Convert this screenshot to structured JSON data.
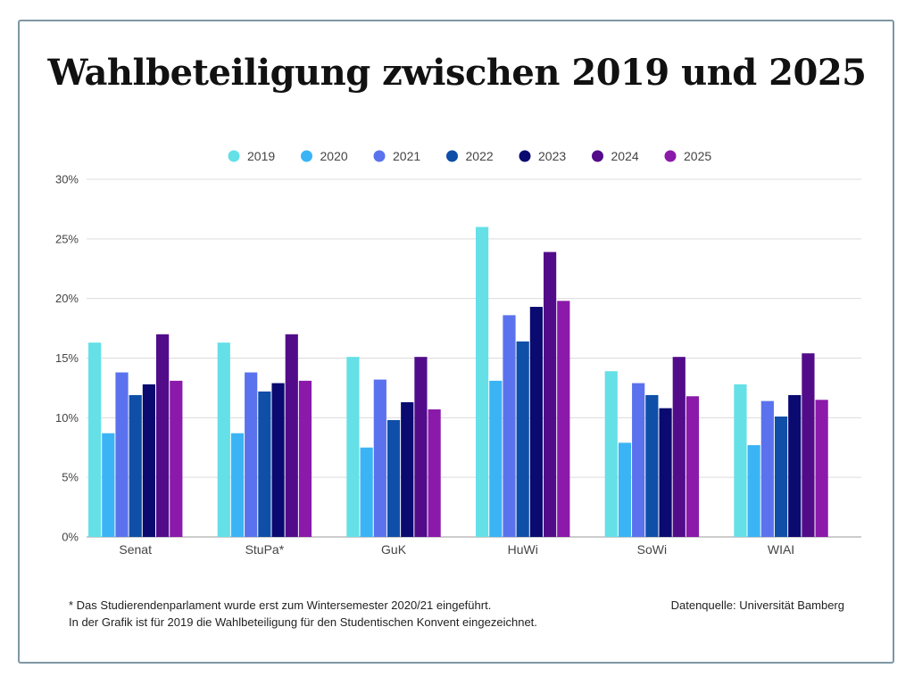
{
  "title": "Wahlbeteiligung zwischen 2019 und 2025",
  "footnote_lines": [
    "* Das Studierendenparlament wurde erst zum Wintersemester 2020/21 eingeführt.",
    "In der Grafik ist für 2019 die Wahlbeteiligung für den Studentischen Konvent eingezeichnet."
  ],
  "source": "Datenquelle: Universität Bamberg",
  "chart_data": {
    "type": "bar",
    "categories": [
      "Senat",
      "StuPa*",
      "GuK",
      "HuWi",
      "SoWi",
      "WIAI"
    ],
    "series": [
      {
        "name": "2019",
        "color": "#64e0e6",
        "values": [
          16.3,
          16.3,
          15.1,
          26.0,
          13.9,
          12.8
        ]
      },
      {
        "name": "2020",
        "color": "#3bb4f5",
        "values": [
          8.7,
          8.7,
          7.5,
          13.1,
          7.9,
          7.7
        ]
      },
      {
        "name": "2021",
        "color": "#5b72ee",
        "values": [
          13.8,
          13.8,
          13.2,
          18.6,
          12.9,
          11.4
        ]
      },
      {
        "name": "2022",
        "color": "#0f4fa8",
        "values": [
          11.9,
          12.2,
          9.8,
          16.4,
          11.9,
          10.1
        ]
      },
      {
        "name": "2023",
        "color": "#0a0a70",
        "values": [
          12.8,
          12.9,
          11.3,
          19.3,
          10.8,
          11.9
        ]
      },
      {
        "name": "2024",
        "color": "#520c8a",
        "values": [
          17.0,
          17.0,
          15.1,
          23.9,
          15.1,
          15.4
        ]
      },
      {
        "name": "2025",
        "color": "#8b1aaa",
        "values": [
          13.1,
          13.1,
          10.7,
          19.8,
          11.8,
          11.5
        ]
      }
    ],
    "ylim": [
      0,
      30
    ],
    "yticks": [
      "0%",
      "5%",
      "10%",
      "15%",
      "20%",
      "25%",
      "30%"
    ],
    "ytick_values": [
      0,
      5,
      10,
      15,
      20,
      25,
      30
    ],
    "grid": true,
    "legend_position": "top"
  }
}
